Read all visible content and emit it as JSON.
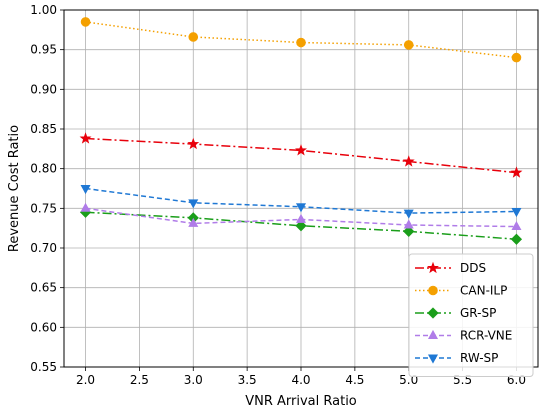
{
  "chart_data": {
    "type": "line",
    "title": "",
    "xlabel": "VNR Arrival Ratio",
    "ylabel": "Revenue Cost Ratio",
    "x": [
      2.0,
      3.0,
      4.0,
      5.0,
      6.0
    ],
    "xlim": [
      1.8,
      6.2
    ],
    "ylim": [
      0.55,
      1.0
    ],
    "xticks": [
      "2.0",
      "2.5",
      "3.0",
      "3.5",
      "4.0",
      "4.5",
      "5.0",
      "5.5",
      "6.0"
    ],
    "yticks": [
      "0.55",
      "0.60",
      "0.65",
      "0.70",
      "0.75",
      "0.80",
      "0.85",
      "0.90",
      "0.95",
      "1.00"
    ],
    "grid": true,
    "legend_position": "lower-right",
    "series": [
      {
        "name": "DDS",
        "values": [
          0.838,
          0.831,
          0.823,
          0.809,
          0.795
        ],
        "color": "#e8000b",
        "marker": "star",
        "line_style": "dashdot"
      },
      {
        "name": "CAN-ILP",
        "values": [
          0.985,
          0.966,
          0.959,
          0.956,
          0.94
        ],
        "color": "#f4a000",
        "marker": "circle",
        "line_style": "dotted"
      },
      {
        "name": "GR-SP",
        "values": [
          0.745,
          0.738,
          0.728,
          0.721,
          0.711
        ],
        "color": "#1a9e1a",
        "marker": "diamond",
        "line_style": "dashdot"
      },
      {
        "name": "RCR-VNE",
        "values": [
          0.75,
          0.731,
          0.736,
          0.729,
          0.727
        ],
        "color": "#b07ce8",
        "marker": "triangle-up",
        "line_style": "dashed"
      },
      {
        "name": "RW-SP",
        "values": [
          0.775,
          0.757,
          0.752,
          0.744,
          0.746
        ],
        "color": "#1f78d4",
        "marker": "triangle-down",
        "line_style": "dashed"
      }
    ]
  }
}
